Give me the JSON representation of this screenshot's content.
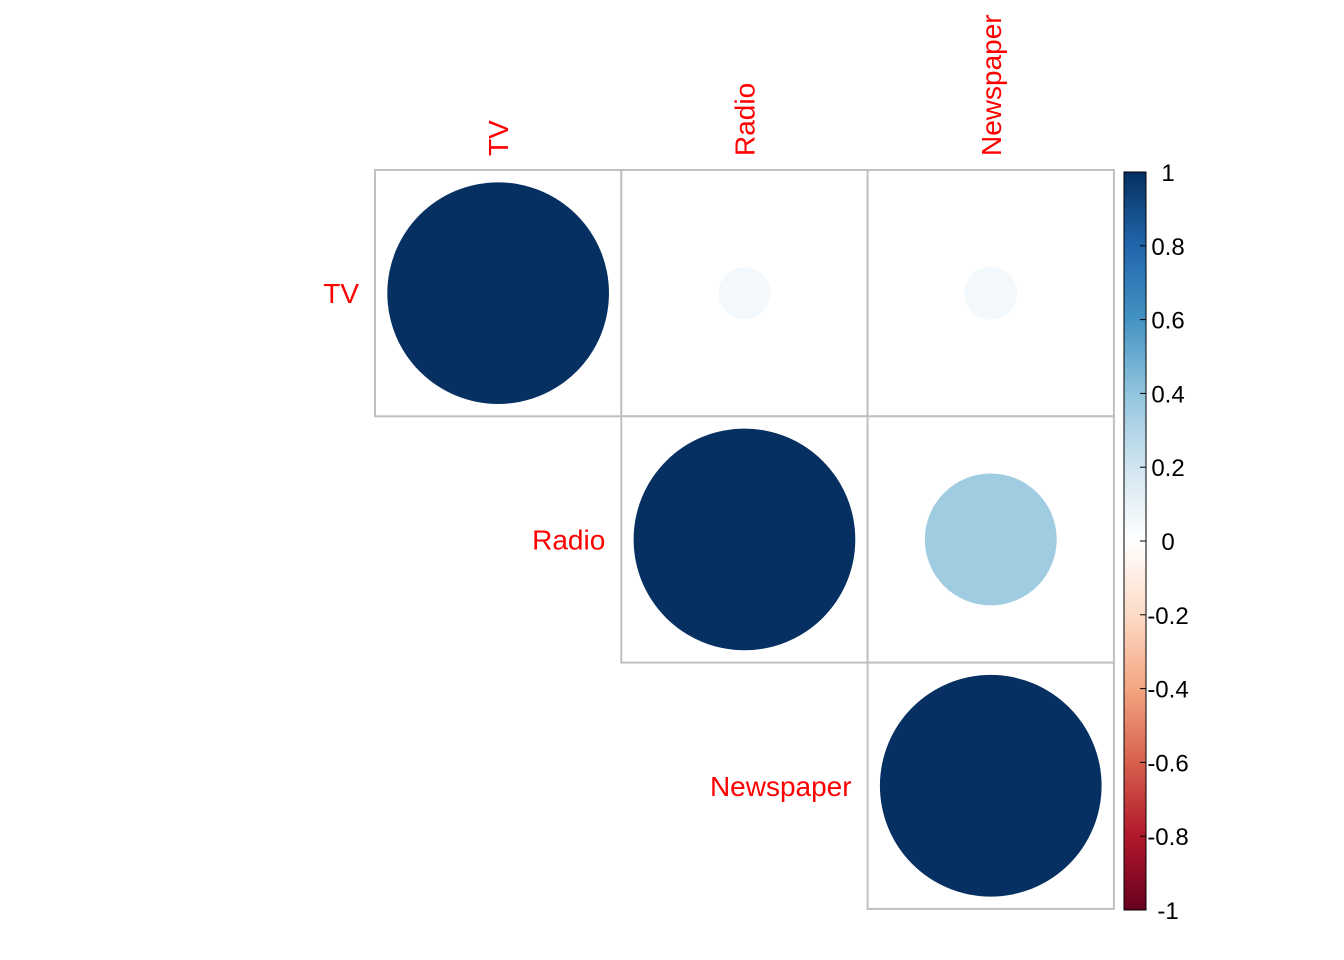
{
  "chart_data": {
    "type": "heatmap",
    "style": "corrplot-circle-upper",
    "variables": [
      "TV",
      "Radio",
      "Newspaper"
    ],
    "matrix": [
      [
        1.0,
        0.055,
        0.057
      ],
      [
        0.055,
        1.0,
        0.354
      ],
      [
        0.057,
        0.354,
        1.0
      ]
    ],
    "show_triangle": "upper",
    "label_color": "#FF0000",
    "grid_color": "#C0C0C0",
    "colorbar": {
      "min": -1,
      "max": 1,
      "ticks": [
        "1",
        "0.8",
        "0.6",
        "0.4",
        "0.2",
        "0",
        "-0.2",
        "-0.4",
        "-0.6",
        "-0.8",
        "-1"
      ],
      "tick_values": [
        1,
        0.8,
        0.6,
        0.4,
        0.2,
        0,
        -0.2,
        -0.4,
        -0.6,
        -0.8,
        -1
      ],
      "colors": [
        "#67001F",
        "#B2182B",
        "#D6604D",
        "#F4A582",
        "#FDDBC7",
        "#FFFFFF",
        "#D1E5F0",
        "#92C5DE",
        "#4393C3",
        "#2166AC",
        "#053061"
      ]
    }
  }
}
